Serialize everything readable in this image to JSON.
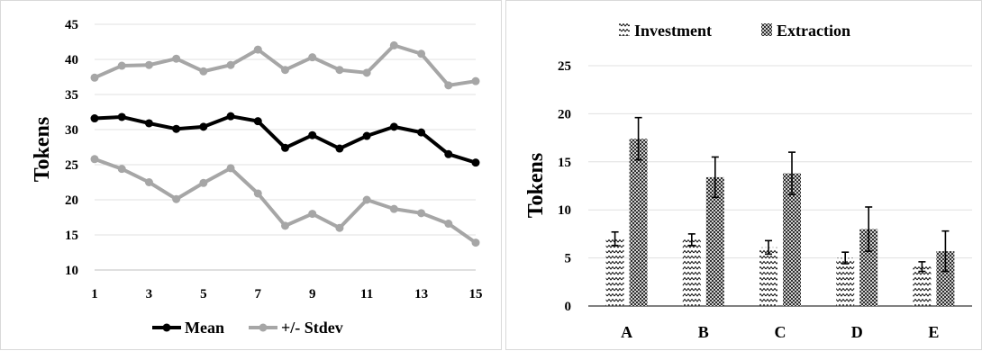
{
  "chart_data": [
    {
      "type": "line",
      "ylabel": "Tokens",
      "xlabel": "",
      "x": [
        1,
        2,
        3,
        4,
        5,
        6,
        7,
        8,
        9,
        10,
        11,
        12,
        13,
        14,
        15
      ],
      "x_tick_labels": [
        "1",
        "3",
        "5",
        "7",
        "9",
        "11",
        "13",
        "15"
      ],
      "ylim": [
        10,
        45
      ],
      "y_ticks": [
        "10",
        "15",
        "20",
        "25",
        "30",
        "35",
        "40",
        "45"
      ],
      "grid": "horizontal",
      "legend_position": "bottom",
      "series": [
        {
          "name": "Mean",
          "color": "#000000",
          "values": [
            31.6,
            31.8,
            30.9,
            30.1,
            30.4,
            31.9,
            31.2,
            27.4,
            29.2,
            27.3,
            29.1,
            30.4,
            29.6,
            26.5,
            25.3
          ]
        },
        {
          "name": "+/- Stdev",
          "color": "#a6a6a6",
          "values": [
            37.4,
            39.1,
            39.2,
            40.1,
            38.3,
            39.2,
            41.4,
            38.5,
            40.3,
            38.5,
            38.1,
            42.0,
            40.8,
            36.3,
            36.9
          ]
        },
        {
          "name": "",
          "color": "#a6a6a6",
          "legend": false,
          "values": [
            25.8,
            24.4,
            22.5,
            20.1,
            22.4,
            24.5,
            20.9,
            16.3,
            18.0,
            16.0,
            20.0,
            18.7,
            18.1,
            16.6,
            13.9
          ]
        }
      ]
    },
    {
      "type": "bar",
      "ylabel": "Tokens",
      "xlabel": "",
      "categories": [
        "A",
        "B",
        "C",
        "D",
        "E"
      ],
      "ylim": [
        0,
        25
      ],
      "y_ticks": [
        "0",
        "5",
        "10",
        "15",
        "20",
        "25"
      ],
      "grid": "horizontal",
      "legend_position": "top",
      "series": [
        {
          "name": "Investment",
          "pattern": "zigzag",
          "values": [
            7.0,
            6.9,
            6.1,
            5.0,
            4.1
          ],
          "error": [
            0.7,
            0.6,
            0.7,
            0.6,
            0.5
          ]
        },
        {
          "name": "Extraction",
          "pattern": "checker",
          "values": [
            17.4,
            13.4,
            13.8,
            8.0,
            5.7
          ],
          "error": [
            2.2,
            2.1,
            2.2,
            2.3,
            2.1
          ]
        }
      ]
    }
  ]
}
